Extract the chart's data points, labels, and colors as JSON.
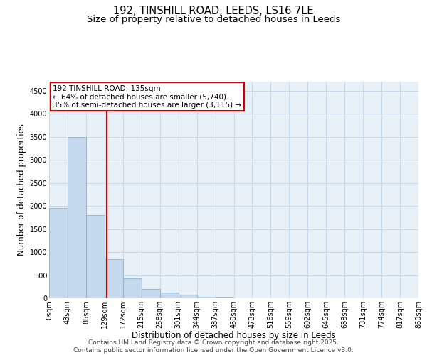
{
  "title_line1": "192, TINSHILL ROAD, LEEDS, LS16 7LE",
  "title_line2": "Size of property relative to detached houses in Leeds",
  "xlabel": "Distribution of detached houses by size in Leeds",
  "ylabel": "Number of detached properties",
  "annotation_title": "192 TINSHILL ROAD: 135sqm",
  "annotation_line2": "← 64% of detached houses are smaller (5,740)",
  "annotation_line3": "35% of semi-detached houses are larger (3,115) →",
  "vline_x": 135,
  "bar_color": "#c5d9ee",
  "bar_edge_color": "#7aaed4",
  "vline_color": "#cc0000",
  "annotation_box_color": "#cc0000",
  "grid_color": "#c8d8e8",
  "background_color": "#e8f0f8",
  "bin_edges": [
    0,
    43,
    86,
    129,
    172,
    215,
    258,
    301,
    344,
    387,
    430,
    473,
    516,
    559,
    602,
    645,
    688,
    731,
    774,
    817,
    860
  ],
  "bin_values": [
    1950,
    3500,
    1800,
    850,
    430,
    200,
    120,
    70,
    30,
    10,
    5,
    2,
    1,
    1,
    1,
    0,
    0,
    0,
    0,
    0
  ],
  "ylim": [
    0,
    4700
  ],
  "yticks": [
    0,
    500,
    1000,
    1500,
    2000,
    2500,
    3000,
    3500,
    4000,
    4500
  ],
  "footer_line1": "Contains HM Land Registry data © Crown copyright and database right 2025.",
  "footer_line2": "Contains public sector information licensed under the Open Government Licence v3.0.",
  "title_fontsize": 10.5,
  "subtitle_fontsize": 9.5,
  "axis_label_fontsize": 8.5,
  "tick_fontsize": 7,
  "annotation_fontsize": 7.5,
  "footer_fontsize": 6.5
}
